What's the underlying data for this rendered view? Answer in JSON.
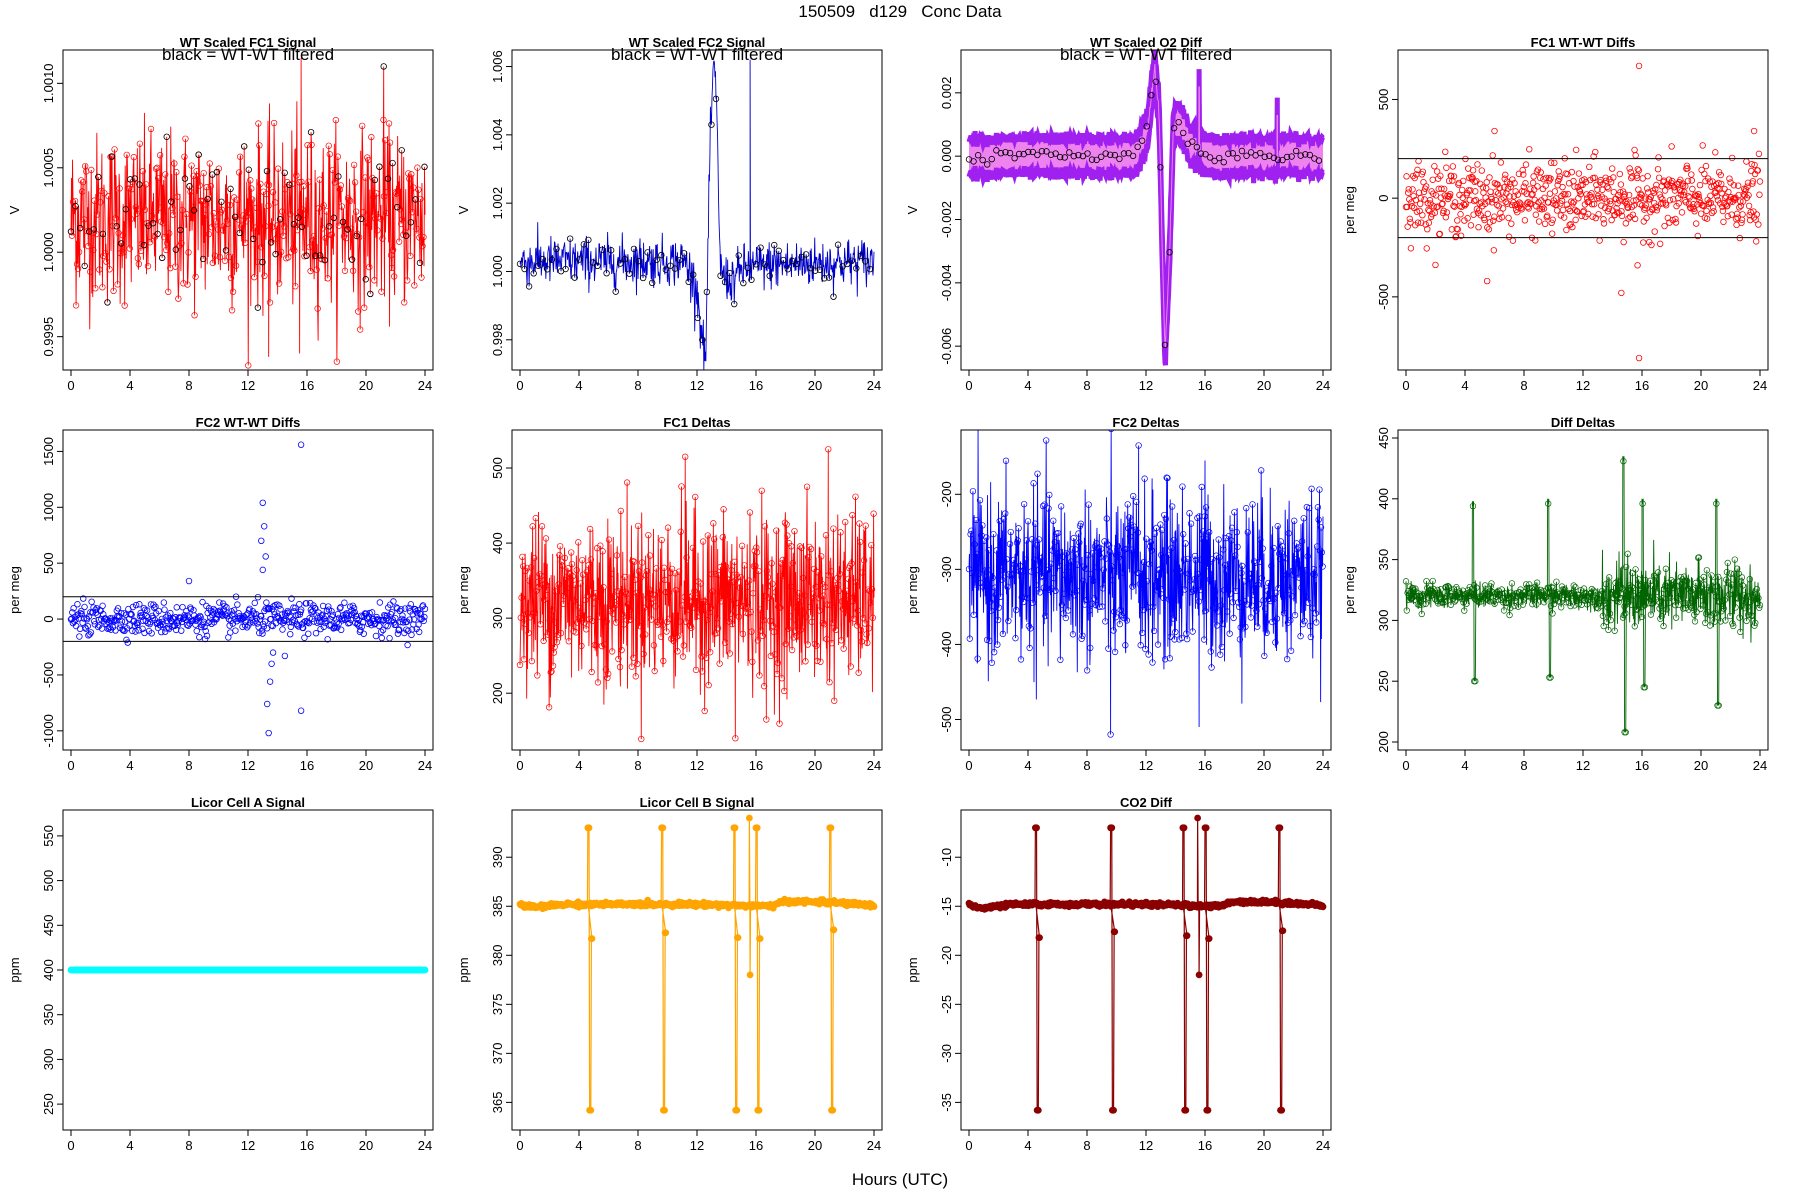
{
  "figure": {
    "title": "150509   d129   Conc Data",
    "xlabel": "Hours (UTC)"
  },
  "chart_data": [
    {
      "id": "p1",
      "type": "line",
      "title": "WT Scaled FC1 Signal",
      "note": "black = WT-WT filtered",
      "ylabel": "V",
      "xlim": [
        0,
        24
      ],
      "ylim": [
        0.99935,
        1.00115
      ],
      "xticks": [
        0,
        4,
        8,
        12,
        16,
        20,
        24
      ],
      "yticks": [
        0.9995,
        1.0,
        1.0005,
        1.001
      ],
      "ytick_labels": [
        "0.9995",
        "1.0000",
        "1.0005",
        "1.0010"
      ],
      "color": "#ff0000",
      "points": true,
      "line": true,
      "overlay_color": "#000000",
      "profile": [
        [
          0,
          1.0002
        ],
        [
          24,
          1.0002
        ]
      ],
      "noise": 0.00025,
      "noise_kind": "normal",
      "spikes": [
        [
          15.6,
          1.00115
        ],
        [
          15.5,
          0.9994
        ],
        [
          21.2,
          1.0011
        ],
        [
          13.4,
          0.99938
        ]
      ]
    },
    {
      "id": "p2",
      "type": "line",
      "title": "WT Scaled FC2 Signal",
      "note": "black = WT-WT filtered",
      "ylabel": "V",
      "xlim": [
        0,
        24
      ],
      "ylim": [
        0.99735,
        1.00625
      ],
      "xticks": [
        0,
        4,
        8,
        12,
        16,
        20,
        24
      ],
      "yticks": [
        0.998,
        1.0,
        1.002,
        1.004,
        1.006
      ],
      "ytick_labels": [
        "0.998",
        "1.000",
        "1.002",
        "1.004",
        "1.006"
      ],
      "color": "#0000cd",
      "points": false,
      "line": true,
      "overlay_color": "#000000",
      "profile": [
        [
          0,
          1.0003
        ],
        [
          11.2,
          1.0003
        ],
        [
          12.0,
          0.9995
        ],
        [
          12.4,
          0.9978
        ],
        [
          12.6,
          0.9975
        ],
        [
          12.85,
          1.003
        ],
        [
          13.1,
          1.006
        ],
        [
          13.3,
          1.0052
        ],
        [
          13.6,
          1.0
        ],
        [
          14.2,
          0.9997
        ],
        [
          15.2,
          1.0001
        ],
        [
          17,
          1.0002
        ],
        [
          24,
          1.0003
        ]
      ],
      "noise": 0.00035,
      "noise_kind": "normal",
      "spikes": [
        [
          15.6,
          1.0062
        ],
        [
          15.6,
          1.0001
        ]
      ]
    },
    {
      "id": "p3",
      "type": "band",
      "title": "WT Scaled O2 Diff",
      "note": "black = WT-WT filtered",
      "ylabel": "V",
      "xlim": [
        0,
        24
      ],
      "ylim": [
        -0.0065,
        0.0031
      ],
      "xticks": [
        0,
        4,
        8,
        12,
        16,
        20,
        24
      ],
      "yticks": [
        -0.006,
        -0.004,
        -0.002,
        0.0,
        0.002
      ],
      "ytick_labels": [
        "-0.006",
        "-0.004",
        "-0.002",
        "0.000",
        "0.002"
      ],
      "color": "#a020f0",
      "fill": "#ee82ee",
      "overlay_color": "#000000",
      "profile": [
        [
          0,
          0.0
        ],
        [
          11.3,
          0.0
        ],
        [
          12.1,
          0.0008
        ],
        [
          12.6,
          0.0028
        ],
        [
          12.9,
          0.0012
        ],
        [
          13.1,
          -0.003
        ],
        [
          13.3,
          -0.0062
        ],
        [
          13.6,
          -0.003
        ],
        [
          13.85,
          0.0008
        ],
        [
          14.1,
          0.0012
        ],
        [
          15.0,
          0.0004
        ],
        [
          16.2,
          0.0
        ],
        [
          24,
          0.0
        ]
      ],
      "band_half": 0.00055,
      "noise": 0.0001,
      "noise_kind": "normal",
      "spikes": [
        [
          15.6,
          0.0022
        ],
        [
          20.9,
          0.0013
        ]
      ]
    },
    {
      "id": "p4",
      "type": "scatter",
      "title": "FC1 WT-WT Diffs",
      "ylabel": "per meg",
      "xlim": [
        0,
        24
      ],
      "ylim": [
        -830,
        710
      ],
      "xticks": [
        0,
        4,
        8,
        12,
        16,
        20,
        24
      ],
      "yticks": [
        -500,
        0,
        500
      ],
      "ytick_labels": [
        "-500",
        "0",
        "500"
      ],
      "color": "#ff0000",
      "hlines": [
        200,
        -200
      ],
      "profile": [
        [
          0,
          0
        ],
        [
          24,
          0
        ]
      ],
      "noise": 90,
      "noise_kind": "normal",
      "count": 650,
      "outliers": [
        [
          15.8,
          670
        ],
        [
          15.8,
          -810
        ],
        [
          14.6,
          -480
        ],
        [
          5.5,
          -420
        ],
        [
          15.7,
          -340
        ],
        [
          6,
          340
        ],
        [
          23.6,
          340
        ]
      ]
    },
    {
      "id": "p5",
      "type": "scatter",
      "title": "FC2 WT-WT Diffs",
      "ylabel": "per meg",
      "xlim": [
        0,
        24
      ],
      "ylim": [
        -1100,
        1620
      ],
      "xticks": [
        0,
        4,
        8,
        12,
        16,
        20,
        24
      ],
      "yticks": [
        -1000,
        -500,
        0,
        500,
        1000,
        1500
      ],
      "ytick_labels": [
        "-1000",
        "-500",
        "0",
        "500",
        "1000",
        "1500"
      ],
      "color": "#0000ff",
      "hlines": [
        200,
        -200
      ],
      "profile": [
        [
          0,
          0
        ],
        [
          24,
          0
        ]
      ],
      "noise": 70,
      "noise_kind": "normal",
      "count": 550,
      "outliers": [
        [
          15.6,
          1560
        ],
        [
          13,
          1040
        ],
        [
          13.1,
          830
        ],
        [
          12.9,
          700
        ],
        [
          13.2,
          560
        ],
        [
          13.0,
          440
        ],
        [
          13.4,
          -1020
        ],
        [
          13.3,
          -760
        ],
        [
          15.6,
          -820
        ],
        [
          13.5,
          -560
        ],
        [
          13.6,
          -400
        ],
        [
          14.5,
          -330
        ],
        [
          13.7,
          -300
        ],
        [
          8,
          340
        ]
      ]
    },
    {
      "id": "p6",
      "type": "line",
      "title": "FC1 Deltas",
      "ylabel": "per meg",
      "xlim": [
        0,
        24
      ],
      "ylim": [
        135,
        540
      ],
      "xticks": [
        0,
        4,
        8,
        12,
        16,
        20,
        24
      ],
      "yticks": [
        200,
        300,
        400,
        500
      ],
      "ytick_labels": [
        "200",
        "300",
        "400",
        "500"
      ],
      "color": "#ff0000",
      "points": true,
      "line": true,
      "profile": [
        [
          0,
          325
        ],
        [
          24,
          325
        ]
      ],
      "noise": 55,
      "noise_kind": "normal",
      "count": 900,
      "spikes": [
        [
          14.6,
          140
        ],
        [
          20.9,
          525
        ],
        [
          11.2,
          515
        ],
        [
          16.7,
          165
        ]
      ]
    },
    {
      "id": "p7",
      "type": "line",
      "title": "FC2 Deltas",
      "ylabel": "per meg",
      "xlim": [
        0,
        24
      ],
      "ylim": [
        -530,
        -125
      ],
      "xticks": [
        0,
        4,
        8,
        12,
        16,
        20,
        24
      ],
      "yticks": [
        -500,
        -400,
        -300,
        -200
      ],
      "ytick_labels": [
        "-500",
        "-400",
        "-300",
        "-200"
      ],
      "color": "#0000ff",
      "points": true,
      "line": true,
      "profile": [
        [
          0,
          -310
        ],
        [
          24,
          -310
        ]
      ],
      "noise": 55,
      "noise_kind": "normal",
      "count": 900,
      "spikes": [
        [
          9.6,
          -520
        ],
        [
          11.5,
          -135
        ],
        [
          15.6,
          -510
        ],
        [
          16,
          -155
        ]
      ]
    },
    {
      "id": "p8",
      "type": "line",
      "title": "Diff Deltas",
      "ylabel": "per meg",
      "xlim": [
        0,
        24
      ],
      "ylim": [
        200,
        450
      ],
      "xticks": [
        0,
        4,
        8,
        12,
        16,
        20,
        24
      ],
      "yticks": [
        200,
        250,
        300,
        350,
        400,
        450
      ],
      "ytick_labels": [
        "200",
        "250",
        "300",
        "350",
        "400",
        "450"
      ],
      "color": "#006400",
      "points": true,
      "line": true,
      "profile": [
        [
          0,
          320
        ],
        [
          24,
          320
        ]
      ],
      "noise": 5,
      "noise_kind": "normal",
      "count": 900,
      "spike_groups": [
        {
          "x": 4.5,
          "high": 398,
          "low": 250
        },
        {
          "x": 9.6,
          "high": 400,
          "low": 253
        },
        {
          "x": 14.7,
          "high": 435,
          "low": 208
        },
        {
          "x": 16.0,
          "high": 400,
          "low": 245
        },
        {
          "x": 21.0,
          "high": 400,
          "low": 230
        }
      ],
      "noisy_window": [
        13.3,
        24,
        14
      ]
    },
    {
      "id": "p9",
      "type": "line",
      "title": "Licor Cell A Signal",
      "ylabel": "ppm",
      "xlim": [
        0,
        24
      ],
      "ylim": [
        230,
        570
      ],
      "xticks": [
        0,
        4,
        8,
        12,
        16,
        20,
        24
      ],
      "yticks": [
        250,
        300,
        350,
        400,
        450,
        500,
        550
      ],
      "ytick_labels": [
        "250",
        "300",
        "350",
        "400",
        "450",
        "500",
        "550"
      ],
      "color": "#00ffff",
      "points": true,
      "line": true,
      "thick": true,
      "profile": [
        [
          0,
          400
        ],
        [
          24,
          400
        ]
      ],
      "noise": 0,
      "noise_kind": "normal",
      "count": 400
    },
    {
      "id": "p10",
      "type": "line",
      "title": "Licor Cell B Signal",
      "ylabel": "ppm",
      "xlim": [
        0,
        24
      ],
      "ylim": [
        363,
        394
      ],
      "xticks": [
        0,
        4,
        8,
        12,
        16,
        20,
        24
      ],
      "yticks": [
        365,
        370,
        375,
        380,
        385,
        390
      ],
      "ytick_labels": [
        "365",
        "370",
        "375",
        "380",
        "385",
        "390"
      ],
      "color": "#ffa500",
      "points": true,
      "line": true,
      "thick": true,
      "profile": [
        [
          0,
          385.2
        ],
        [
          0.5,
          385.0
        ],
        [
          1,
          384.9
        ],
        [
          3,
          385.2
        ],
        [
          12,
          385.2
        ],
        [
          17,
          385.0
        ],
        [
          18,
          385.5
        ],
        [
          21,
          385.4
        ],
        [
          24,
          385.1
        ]
      ],
      "noise": 0.1,
      "noise_kind": "normal",
      "count": 500,
      "cal_events": [
        {
          "x": 4.6,
          "high": 393,
          "low": 364.2,
          "after": 381.7
        },
        {
          "x": 9.6,
          "high": 393,
          "low": 364.2,
          "after": 382.3
        },
        {
          "x": 14.5,
          "high": 393,
          "low": 364.2,
          "after": 381.8
        },
        {
          "x": 16.0,
          "high": 393,
          "low": 364.2,
          "after": 381.7
        },
        {
          "x": 21.0,
          "high": 393,
          "low": 364.2,
          "after": 382.6
        }
      ],
      "spikes": [
        [
          15.55,
          394
        ],
        [
          15.6,
          378
        ]
      ]
    },
    {
      "id": "p11",
      "type": "line",
      "title": "CO2 Diff",
      "ylabel": "ppm",
      "xlim": [
        0,
        24
      ],
      "ylim": [
        -37,
        -6
      ],
      "xticks": [
        0,
        4,
        8,
        12,
        16,
        20,
        24
      ],
      "yticks": [
        -35,
        -30,
        -25,
        -20,
        -15,
        -10
      ],
      "ytick_labels": [
        "-35",
        "-30",
        "-25",
        "-20",
        "-15",
        "-10"
      ],
      "color": "#8b0000",
      "points": true,
      "line": true,
      "thick": true,
      "profile": [
        [
          0,
          -14.8
        ],
        [
          0.5,
          -15.1
        ],
        [
          1,
          -15.2
        ],
        [
          3,
          -14.8
        ],
        [
          12,
          -14.8
        ],
        [
          17,
          -15.0
        ],
        [
          18,
          -14.5
        ],
        [
          21,
          -14.6
        ],
        [
          24,
          -14.9
        ]
      ],
      "noise": 0.1,
      "noise_kind": "normal",
      "count": 500,
      "cal_events": [
        {
          "x": 4.5,
          "high": -7,
          "low": -35.8,
          "after": -18.2
        },
        {
          "x": 9.6,
          "high": -7,
          "low": -35.8,
          "after": -17.6
        },
        {
          "x": 14.5,
          "high": -7,
          "low": -35.8,
          "after": -18.0
        },
        {
          "x": 16.0,
          "high": -7,
          "low": -35.8,
          "after": -18.3
        },
        {
          "x": 21.0,
          "high": -7,
          "low": -35.8,
          "after": -17.5
        }
      ],
      "spikes": [
        [
          15.5,
          -6
        ],
        [
          15.6,
          -22
        ]
      ]
    }
  ]
}
